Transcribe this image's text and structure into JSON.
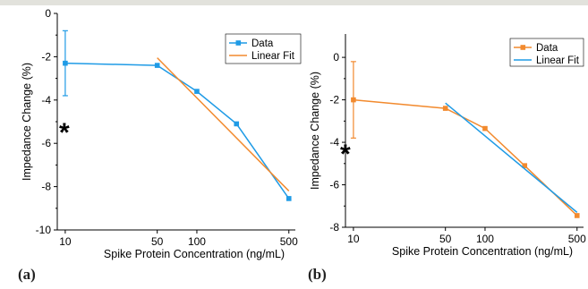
{
  "panels": [
    {
      "letter": "(a)",
      "annotation": "*",
      "chart_data": {
        "type": "line",
        "xscale": "log",
        "xlabel": "Spike Protein Concentration (ng/mL)",
        "ylabel": "Impedance Change (%)",
        "xlim": [
          8.7,
          560
        ],
        "ylim": [
          -10,
          0
        ],
        "xticks": [
          10,
          50,
          100,
          500
        ],
        "yticks": [
          0,
          -2,
          -4,
          -6,
          -8,
          -10
        ],
        "legend_position": "top-right",
        "series": [
          {
            "name": "Data",
            "color": "#1f9be6",
            "marker": "square",
            "x": [
              10,
              50,
              100,
              200,
              500
            ],
            "y": [
              -2.3,
              -2.4,
              -3.6,
              -5.1,
              -8.55
            ],
            "error": [
              1.5,
              null,
              null,
              null,
              null
            ]
          },
          {
            "name": "Linear Fit",
            "color": "#f28a2e",
            "marker": "none",
            "x": [
              50,
              500
            ],
            "y": [
              -2.05,
              -8.2
            ]
          }
        ]
      }
    },
    {
      "letter": "(b)",
      "annotation": "*",
      "chart_data": {
        "type": "line",
        "xscale": "log",
        "xlabel": "Spike Protein Concentration (ng/mL)",
        "ylabel": "Impedance Change (%)",
        "xlim": [
          8.7,
          560
        ],
        "ylim": [
          -8,
          1.1
        ],
        "xticks": [
          10,
          50,
          100,
          500
        ],
        "yticks": [
          0,
          -2,
          -4,
          -6,
          -8
        ],
        "legend_position": "top-right",
        "series": [
          {
            "name": "Data",
            "color": "#f28a2e",
            "marker": "square",
            "x": [
              10,
              50,
              100,
              200,
              500
            ],
            "y": [
              -2.0,
              -2.4,
              -3.35,
              -5.1,
              -7.45
            ],
            "error": [
              1.8,
              null,
              null,
              null,
              null
            ]
          },
          {
            "name": "Linear Fit",
            "color": "#1f9be6",
            "marker": "none",
            "x": [
              50,
              500
            ],
            "y": [
              -2.15,
              -7.3
            ]
          }
        ]
      }
    }
  ]
}
